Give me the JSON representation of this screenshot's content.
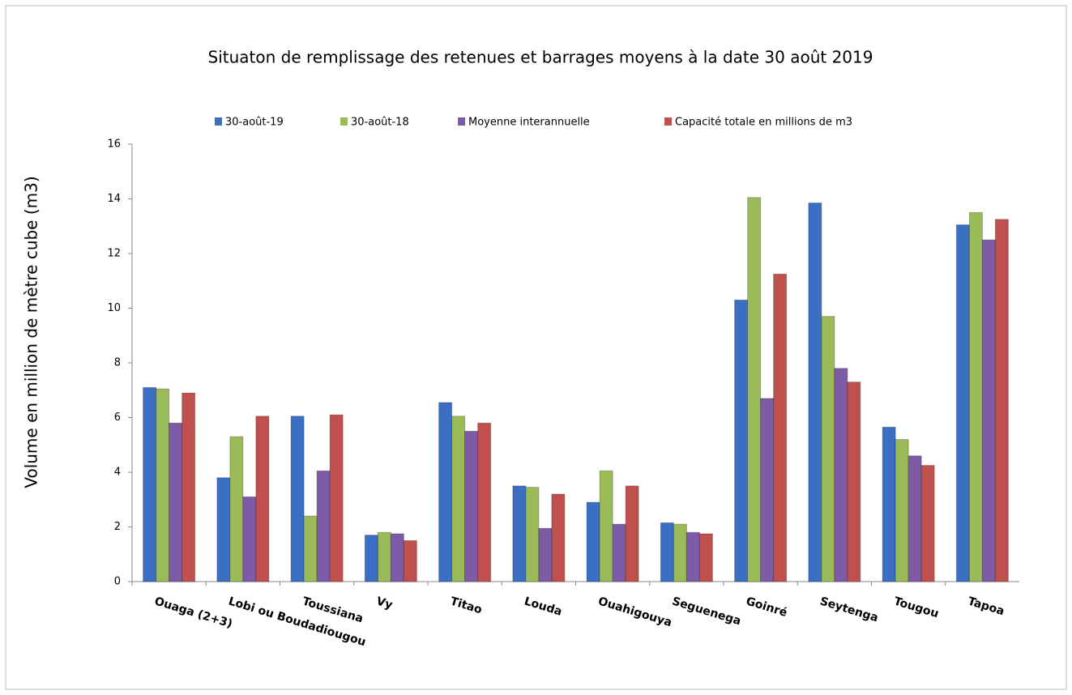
{
  "chart_data": {
    "type": "bar",
    "title": "Situaton de remplissage des retenues et barrages moyens à la date 30 août 2019",
    "y_label": "Volume en million de mètre cube (m3)",
    "categories": [
      "Ouaga (2+3)",
      "Lobi ou Boudadiougou",
      "Toussiana",
      "Vy",
      "Titao",
      "Louda",
      "Ouahigouya",
      "Seguenega",
      "Goinré",
      "Seytenga",
      "Tougou",
      "Tapoa"
    ],
    "series": [
      {
        "name": "30-août-19",
        "color": "#3a6fc4",
        "values": [
          7.1,
          3.8,
          6.05,
          1.7,
          6.55,
          3.5,
          2.9,
          2.15,
          10.3,
          13.85,
          5.65,
          13.05
        ]
      },
      {
        "name": "30-août-18",
        "color": "#9bbb59",
        "values": [
          7.05,
          5.3,
          2.4,
          1.8,
          6.05,
          3.45,
          4.05,
          2.1,
          14.05,
          9.7,
          5.2,
          13.5
        ]
      },
      {
        "name": "Moyenne interannuelle",
        "color": "#7d5ba6",
        "values": [
          5.8,
          3.1,
          4.05,
          1.75,
          5.5,
          1.95,
          2.1,
          1.8,
          6.7,
          7.8,
          4.6,
          12.5
        ]
      },
      {
        "name": "Capacité totale en millions de m3",
        "color": "#c0504d",
        "values": [
          6.9,
          6.05,
          6.1,
          1.5,
          5.8,
          3.2,
          3.5,
          1.75,
          11.25,
          7.3,
          4.25,
          13.25
        ]
      }
    ],
    "ylim": [
      0,
      16
    ],
    "yticks": [
      0,
      2,
      4,
      6,
      8,
      10,
      12,
      14,
      16
    ],
    "legend": "top"
  }
}
